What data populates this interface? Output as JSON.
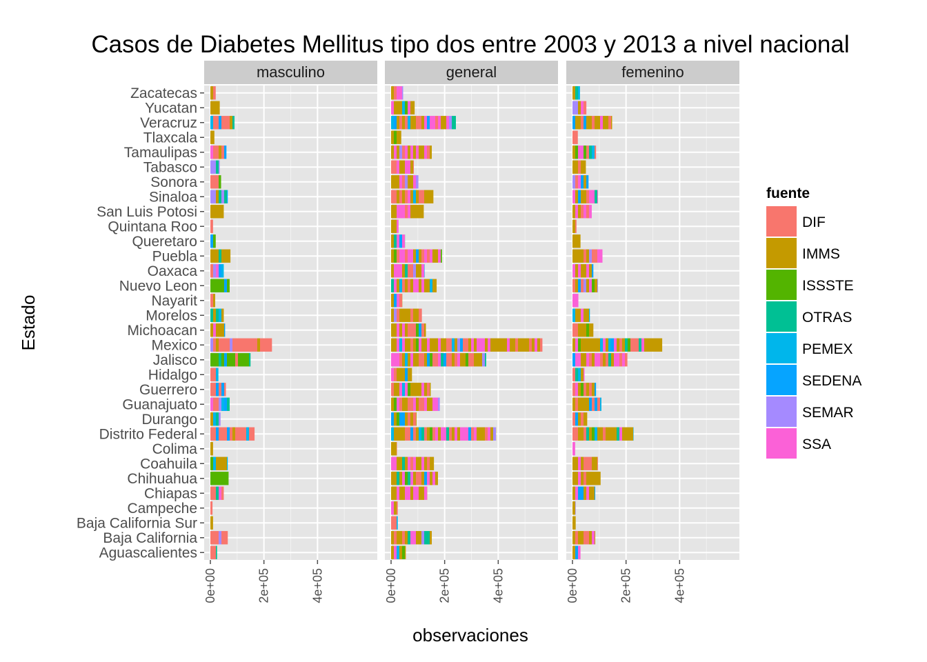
{
  "chart_data": {
    "type": "bar",
    "orientation": "horizontal",
    "stacked": true,
    "title": "Casos de Diabetes Mellitus tipo dos entre 2003 y 2013 a nivel nacional",
    "xlabel": "observaciones",
    "ylabel": "Estado",
    "xlim": [
      0,
      600000
    ],
    "x_ticks": [
      0,
      200000,
      400000
    ],
    "x_tick_labels": [
      "0e+00",
      "2e+05",
      "4e+05"
    ],
    "grid": true,
    "legend_position": "right",
    "legend": {
      "title": "fuente",
      "entries": [
        {
          "name": "DIF",
          "color": "#F8766D"
        },
        {
          "name": "IMMS",
          "color": "#C49A00"
        },
        {
          "name": "ISSSTE",
          "color": "#53B400"
        },
        {
          "name": "OTRAS",
          "color": "#00C094"
        },
        {
          "name": "PEMEX",
          "color": "#00B6EB"
        },
        {
          "name": "SEDENA",
          "color": "#06A4FF"
        },
        {
          "name": "SEMAR",
          "color": "#A58AFF"
        },
        {
          "name": "SSA",
          "color": "#FB61D7"
        }
      ]
    },
    "categories": [
      "Zacatecas",
      "Yucatan",
      "Veracruz",
      "Tlaxcala",
      "Tamaulipas",
      "Tabasco",
      "Sonora",
      "Sinaloa",
      "San Luis Potosi",
      "Quintana Roo",
      "Queretaro",
      "Puebla",
      "Oaxaca",
      "Nuevo Leon",
      "Nayarit",
      "Morelos",
      "Michoacan",
      "Mexico",
      "Jalisco",
      "Hidalgo",
      "Guerrero",
      "Guanajuato",
      "Durango",
      "Distrito Federal",
      "Colima",
      "Coahuila",
      "Chihuahua",
      "Chiapas",
      "Campeche",
      "Baja California Sur",
      "Baja California",
      "Aguascalientes"
    ],
    "panels": [
      {
        "name": "masculino",
        "totals": [
          20000,
          35000,
          90000,
          15000,
          60000,
          35000,
          40000,
          65000,
          50000,
          10000,
          20000,
          75000,
          50000,
          72000,
          18000,
          50000,
          55000,
          230000,
          150000,
          30000,
          58000,
          72000,
          38000,
          165000,
          10000,
          65000,
          68000,
          50000,
          8000,
          10000,
          65000,
          25000
        ],
        "dominant": [
          "IMMS",
          "IMMS",
          "DIF",
          "IMMS",
          "DIF",
          "SEMAR",
          "DIF",
          "SEMAR",
          "IMMS",
          "DIF",
          "DIF",
          "IMMS",
          "DIF",
          "ISSSTE",
          "IMMS",
          "IMMS",
          "IMMS",
          "DIF",
          "ISSSTE",
          "DIF",
          "DIF",
          "DIF",
          "IMMS",
          "DIF",
          "ISSSTE",
          "IMMS",
          "ISSSTE",
          "DIF",
          "DIF",
          "IMMS",
          "DIF",
          "DIF"
        ]
      },
      {
        "name": "general",
        "totals": [
          45000,
          88000,
          242000,
          38000,
          152000,
          85000,
          102000,
          158000,
          122000,
          28000,
          52000,
          190000,
          125000,
          170000,
          42000,
          115000,
          130000,
          565000,
          355000,
          78000,
          148000,
          182000,
          95000,
          392000,
          22000,
          160000,
          175000,
          135000,
          25000,
          25000,
          152000,
          55000
        ]
      },
      {
        "name": "femenino",
        "totals": [
          28000,
          52000,
          148000,
          20000,
          88000,
          50000,
          60000,
          95000,
          72000,
          15000,
          30000,
          112000,
          78000,
          95000,
          22000,
          65000,
          78000,
          335000,
          205000,
          45000,
          88000,
          108000,
          55000,
          228000,
          10000,
          95000,
          105000,
          85000,
          12000,
          12000,
          85000,
          30000
        ]
      }
    ]
  }
}
